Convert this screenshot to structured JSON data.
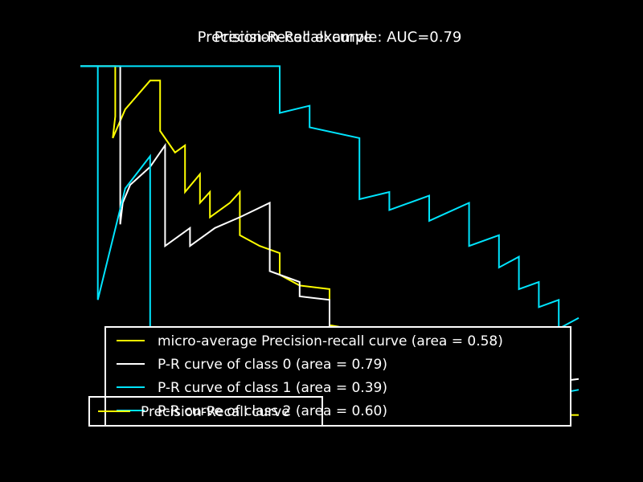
{
  "chart_data": [
    {
      "type": "line",
      "title": "Precision-Recall example: AUC=0.79",
      "xlabel": "",
      "ylabel": "",
      "xlim": [
        0.0,
        1.0
      ],
      "ylim": [
        0.0,
        1.05
      ],
      "grid": false,
      "legend_position": "lower-right",
      "series": [
        {
          "name": "micro-average Precision-recall curve (area = 0.58)",
          "color": "#ffff00",
          "x": [
            0.0,
            0.07,
            0.07,
            0.065,
            0.09,
            0.14,
            0.16,
            0.16,
            0.19,
            0.21,
            0.21,
            0.24,
            0.24,
            0.26,
            0.26,
            0.3,
            0.32,
            0.32,
            0.36,
            0.4,
            0.4,
            0.44,
            0.5,
            0.5,
            0.54,
            0.54,
            0.57,
            0.57,
            0.6,
            0.6,
            0.64,
            0.64,
            0.68,
            0.72,
            0.76,
            0.8,
            0.84,
            0.88,
            0.92,
            0.96,
            1.0
          ],
          "y": [
            1.0,
            1.0,
            0.86,
            0.8,
            0.88,
            0.96,
            0.96,
            0.82,
            0.76,
            0.78,
            0.65,
            0.7,
            0.62,
            0.65,
            0.58,
            0.62,
            0.65,
            0.53,
            0.5,
            0.48,
            0.42,
            0.39,
            0.38,
            0.28,
            0.27,
            0.23,
            0.22,
            0.17,
            0.16,
            0.13,
            0.12,
            0.1,
            0.09,
            0.08,
            0.07,
            0.06,
            0.05,
            0.04,
            0.04,
            0.03,
            0.03
          ]
        },
        {
          "name": "P-R curve of class 0 (area = 0.79)",
          "color": "#ffffff",
          "x": [
            0.0,
            0.08,
            0.08,
            0.085,
            0.1,
            0.14,
            0.17,
            0.17,
            0.22,
            0.22,
            0.27,
            0.32,
            0.38,
            0.38,
            0.44,
            0.44,
            0.5,
            0.5,
            0.56,
            0.56,
            0.6,
            0.64,
            0.64,
            0.68,
            0.74,
            0.8,
            0.84,
            0.84,
            0.88,
            0.94,
            1.0
          ],
          "y": [
            1.0,
            1.0,
            0.56,
            0.62,
            0.67,
            0.72,
            0.78,
            0.5,
            0.55,
            0.5,
            0.55,
            0.58,
            0.62,
            0.43,
            0.4,
            0.36,
            0.35,
            0.27,
            0.25,
            0.2,
            0.2,
            0.22,
            0.18,
            0.16,
            0.17,
            0.18,
            0.18,
            0.1,
            0.11,
            0.12,
            0.13
          ]
        },
        {
          "name": "P-R curve of class 1 (area = 0.39)",
          "color": "#00e5ff",
          "x": [
            0.0,
            0.035,
            0.035,
            0.09,
            0.14,
            0.14,
            0.18,
            0.18,
            0.2,
            0.2,
            0.24,
            0.24,
            0.28,
            0.28,
            0.32,
            0.38,
            0.44,
            0.5,
            0.56,
            0.62,
            0.68,
            0.74,
            0.8,
            0.86,
            0.92,
            1.0
          ],
          "y": [
            1.0,
            1.0,
            0.35,
            0.66,
            0.75,
            0.25,
            0.2,
            0.1,
            0.05,
            0.02,
            0.02,
            0.01,
            0.01,
            0.0,
            0.0,
            0.0,
            0.0,
            0.0,
            0.0,
            0.03,
            0.04,
            0.05,
            0.06,
            0.07,
            0.08,
            0.1
          ]
        },
        {
          "name": "P-R curve of class 2 (area = 0.60)",
          "color": "#00e5ff",
          "x": [
            0.0,
            0.4,
            0.4,
            0.46,
            0.46,
            0.56,
            0.56,
            0.62,
            0.62,
            0.7,
            0.7,
            0.78,
            0.78,
            0.84,
            0.84,
            0.88,
            0.88,
            0.92,
            0.92,
            0.96,
            0.96,
            1.0
          ],
          "y": [
            1.0,
            1.0,
            0.87,
            0.89,
            0.83,
            0.8,
            0.63,
            0.65,
            0.6,
            0.64,
            0.57,
            0.62,
            0.5,
            0.53,
            0.44,
            0.47,
            0.38,
            0.4,
            0.33,
            0.35,
            0.27,
            0.3
          ]
        }
      ]
    },
    {
      "type": "line",
      "title": "Precision-Recall curve",
      "legend": [
        "Precision-Recall curve"
      ]
    }
  ],
  "overlap_legend_label": "Precision-Recall curve"
}
